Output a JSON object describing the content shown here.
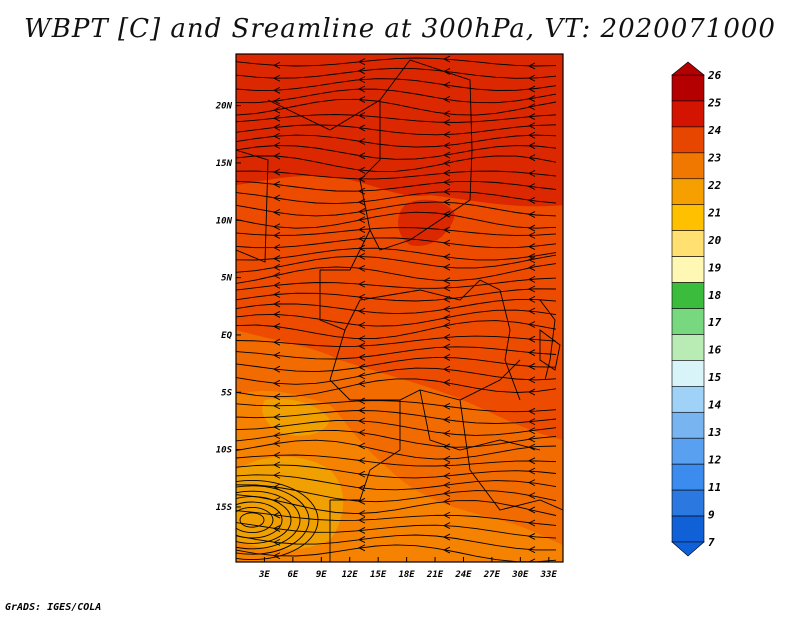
{
  "title": "WBPT [C] and Sreamline at 300hPa, VT: 2020071000",
  "footer": "GrADS: IGES/COLA",
  "map": {
    "lon_ticks": [
      "3E",
      "6E",
      "9E",
      "12E",
      "15E",
      "18E",
      "21E",
      "24E",
      "27E",
      "30E",
      "33E"
    ],
    "lat_ticks": [
      "20N",
      "15N",
      "10N",
      "5N",
      "EQ",
      "5S",
      "10S",
      "15S"
    ],
    "lon_range": [
      0,
      34.5
    ],
    "lat_range": [
      -19.8,
      24.5
    ],
    "fill_colors": {
      "c20": "#f0a000",
      "c21": "#f58200",
      "c22": "#f26b00",
      "c23": "#ec4b00",
      "c24": "#dc2800"
    }
  },
  "colorbar": {
    "labels": [
      "7",
      "9",
      "11",
      "12",
      "13",
      "14",
      "15",
      "16",
      "17",
      "18",
      "19",
      "20",
      "21",
      "22",
      "23",
      "24",
      "25",
      "26"
    ],
    "colors": [
      "#1060d8",
      "#2a78e0",
      "#3c8cf0",
      "#5aa0f0",
      "#78b4f0",
      "#a0d2f8",
      "#d8f4f8",
      "#b8ecb4",
      "#78d880",
      "#3cbc3c",
      "#fff8b4",
      "#ffe070",
      "#ffc000",
      "#f5a000",
      "#f07800",
      "#e64600",
      "#d21400",
      "#b40000"
    ]
  }
}
